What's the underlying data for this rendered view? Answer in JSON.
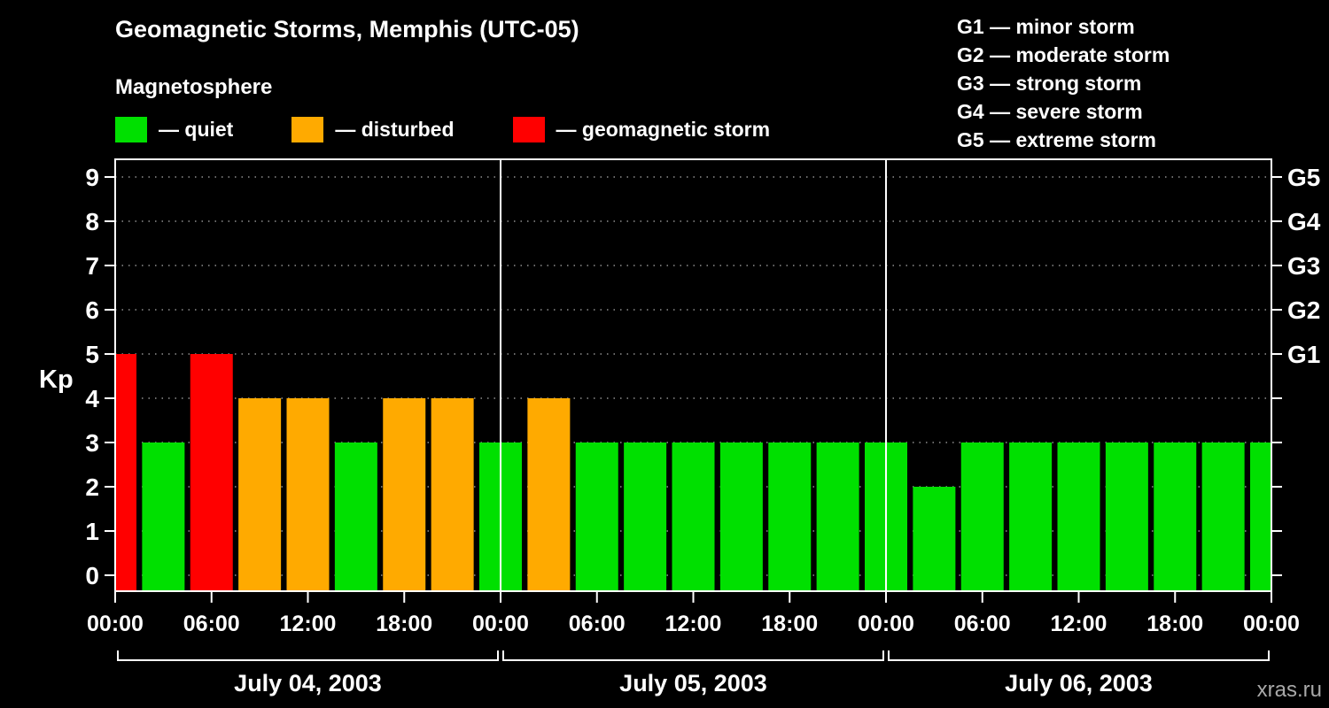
{
  "header": {
    "title": "Geomagnetic Storms, Memphis (UTC-05)",
    "subtitle": "Magnetosphere"
  },
  "legend": {
    "items": [
      {
        "name": "quiet",
        "label": "— quiet",
        "color": "#00e000"
      },
      {
        "name": "disturbed",
        "label": "— disturbed",
        "color": "#ffaa00"
      },
      {
        "name": "storm",
        "label": "— geomagnetic storm",
        "color": "#ff0000"
      }
    ]
  },
  "storm_scale_legend": {
    "items": [
      "G1 — minor storm",
      "G2 — moderate storm",
      "G3 — strong storm",
      "G4 — severe storm",
      "G5 — extreme storm"
    ]
  },
  "watermark": "xras.ru",
  "chart_data": {
    "type": "bar",
    "title": "Geomagnetic Storms, Memphis (UTC-05)",
    "ylabel": "Kp",
    "ylim": [
      0,
      9
    ],
    "yticks": [
      0,
      1,
      2,
      3,
      4,
      5,
      6,
      7,
      8,
      9
    ],
    "right_axis_ticks": [
      {
        "kp": 5,
        "label": "G1"
      },
      {
        "kp": 6,
        "label": "G2"
      },
      {
        "kp": 7,
        "label": "G3"
      },
      {
        "kp": 8,
        "label": "G4"
      },
      {
        "kp": 9,
        "label": "G5"
      }
    ],
    "x_hours": [
      0,
      3,
      6,
      9,
      12,
      15,
      18,
      21,
      24,
      27,
      30,
      33,
      36,
      39,
      42,
      45,
      48,
      51,
      54,
      57,
      60,
      63,
      66,
      69,
      72
    ],
    "values": [
      5,
      3,
      5,
      4,
      4,
      3,
      4,
      4,
      3,
      4,
      3,
      3,
      3,
      3,
      3,
      3,
      3,
      2,
      3,
      3,
      3,
      3,
      3,
      3,
      3
    ],
    "statuses": [
      "storm",
      "quiet",
      "storm",
      "disturbed",
      "disturbed",
      "quiet",
      "disturbed",
      "disturbed",
      "quiet",
      "disturbed",
      "quiet",
      "quiet",
      "quiet",
      "quiet",
      "quiet",
      "quiet",
      "quiet",
      "quiet",
      "quiet",
      "quiet",
      "quiet",
      "quiet",
      "quiet",
      "quiet",
      "quiet"
    ],
    "interval_hours": 3,
    "days": [
      {
        "label": "July 04, 2003"
      },
      {
        "label": "July 05, 2003"
      },
      {
        "label": "July 06, 2003"
      }
    ],
    "time_tick_labels": [
      "00:00",
      "06:00",
      "12:00",
      "18:00"
    ],
    "grid": "dotted horizontal lines at each Kp integer",
    "legend_position": "top-left"
  }
}
